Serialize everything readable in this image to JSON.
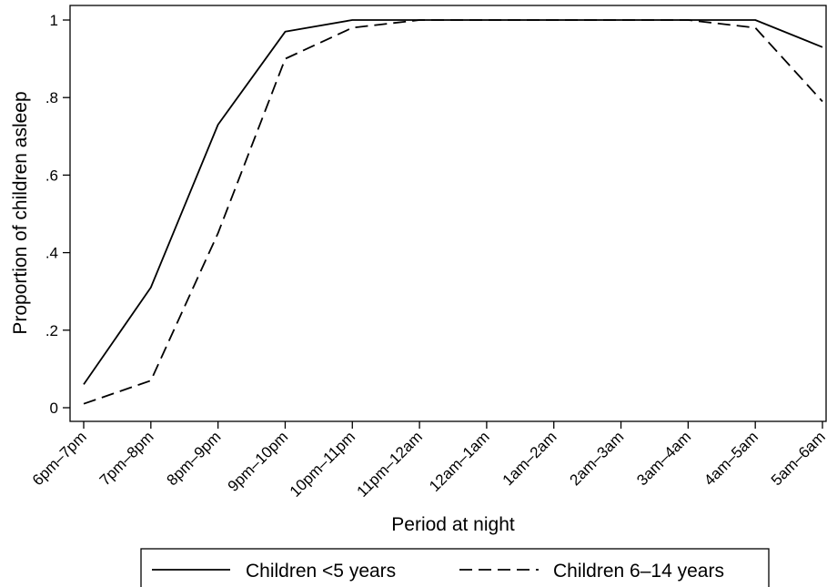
{
  "chart_data": {
    "type": "line",
    "title": "",
    "xlabel": "Period at night",
    "ylabel": "Proportion of children asleep",
    "categories": [
      "6pm–7pm",
      "7pm–8pm",
      "8pm–9pm",
      "9pm–10pm",
      "10pm–11pm",
      "11pm–12am",
      "12am–1am",
      "1am–2am",
      "2am–3am",
      "3am–4am",
      "4am–5am",
      "5am–6am"
    ],
    "ylim": [
      0,
      1
    ],
    "yticks": [
      0,
      0.2,
      0.4,
      0.6,
      0.8,
      1
    ],
    "ytick_labels": [
      "0",
      ".2",
      ".4",
      ".6",
      ".8",
      "1"
    ],
    "grid": false,
    "legend_position": "bottom",
    "series": [
      {
        "name": "Children <5 years",
        "style": "solid",
        "color": "#000000",
        "values": [
          0.06,
          0.31,
          0.73,
          0.97,
          1.0,
          1.0,
          1.0,
          1.0,
          1.0,
          1.0,
          1.0,
          0.93
        ]
      },
      {
        "name": "Children 6–14 years",
        "style": "dashed",
        "color": "#000000",
        "values": [
          0.01,
          0.07,
          0.45,
          0.9,
          0.98,
          1.0,
          1.0,
          1.0,
          1.0,
          1.0,
          0.98,
          0.79
        ]
      }
    ]
  }
}
